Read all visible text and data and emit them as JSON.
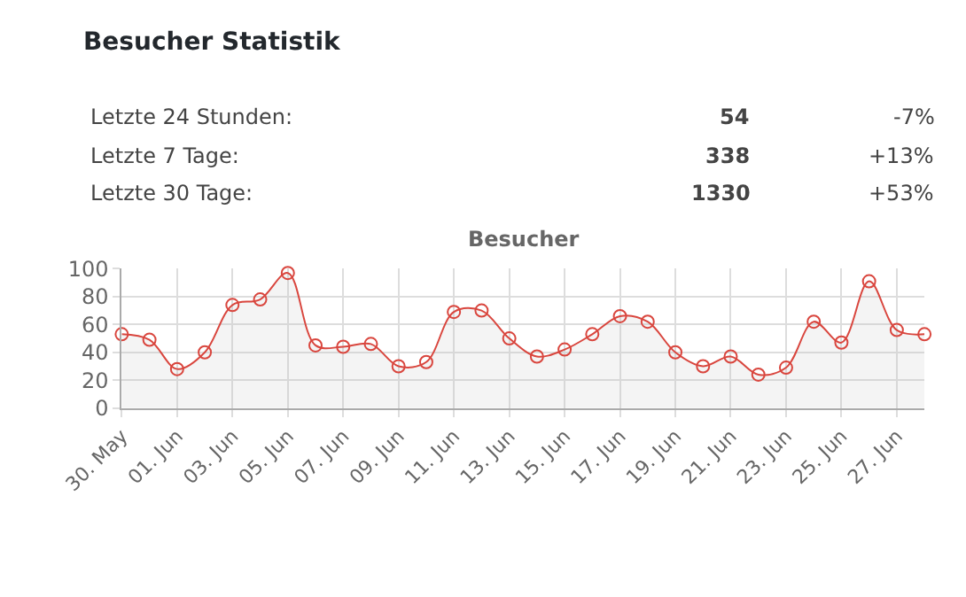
{
  "chart_data": [
    {
      "type": "other",
      "title": "Besucher Statistik",
      "annotations": [
        "Letzte 24 Stunden:",
        "54",
        "-7%",
        "Letzte 7 Tage:",
        "338",
        "+13%",
        "Letzte 30 Tage:",
        "1330",
        "+53%"
      ]
    },
    {
      "type": "area",
      "title": "Besucher",
      "categories": [
        "30. May",
        null,
        "01. Jun",
        null,
        "03. Jun",
        null,
        "05. Jun",
        null,
        "07. Jun",
        null,
        "09. Jun",
        null,
        "11. Jun",
        null,
        "13. Jun",
        null,
        "15. Jun",
        null,
        "17. Jun",
        null,
        "19. Jun",
        null,
        "21. Jun",
        null,
        "23. Jun",
        null,
        "25. Jun",
        null,
        "27. Jun",
        null
      ],
      "series": [
        {
          "color": "#d9463e",
          "values": [
            53,
            49,
            28,
            40,
            74,
            78,
            97,
            45,
            44,
            46,
            30,
            33,
            69,
            70,
            50,
            37,
            42,
            53,
            66,
            62,
            40,
            30,
            37,
            24,
            29,
            62,
            47,
            91,
            56,
            53
          ]
        }
      ],
      "ylim": [
        0,
        100
      ],
      "yticks": [
        0,
        20,
        40,
        60,
        80,
        100
      ],
      "grid": true,
      "marker": "circle"
    }
  ]
}
